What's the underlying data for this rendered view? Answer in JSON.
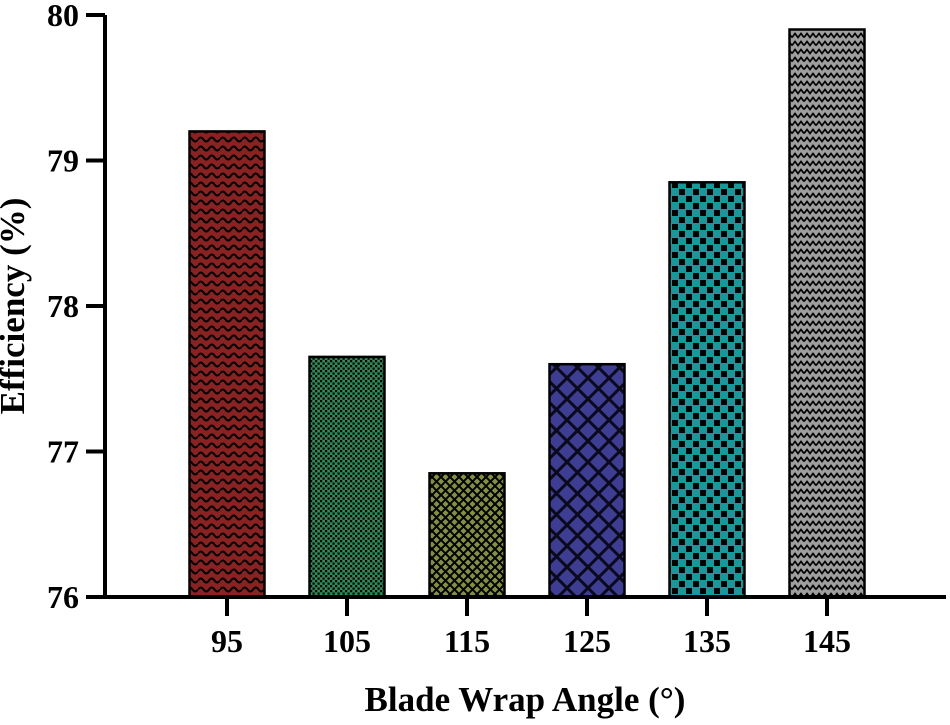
{
  "figure": {
    "background_color": "#ffffff",
    "axis_color": "#000000",
    "text_color": "#000000"
  },
  "chart_data": {
    "type": "bar",
    "title": "",
    "xlabel": "Blade Wrap Angle (°)",
    "ylabel": "Efficiency (%)",
    "categories": [
      "95",
      "105",
      "115",
      "125",
      "135",
      "145"
    ],
    "values": [
      79.2,
      77.65,
      76.85,
      77.6,
      78.85,
      79.9
    ],
    "ylim": [
      76,
      80
    ],
    "yticks": [
      76,
      77,
      78,
      79,
      80
    ],
    "bar_colors": [
      "#8b2222",
      "#2e8b57",
      "#82903f",
      "#3d3d94",
      "#17989b",
      "#9e9e9e"
    ],
    "bar_patterns": [
      "wave",
      "checker-fine",
      "diamond-fine",
      "diamond-large",
      "squares",
      "zigzag"
    ],
    "bar_edge_color": "#000000",
    "grid": false,
    "legend_position": "none"
  }
}
